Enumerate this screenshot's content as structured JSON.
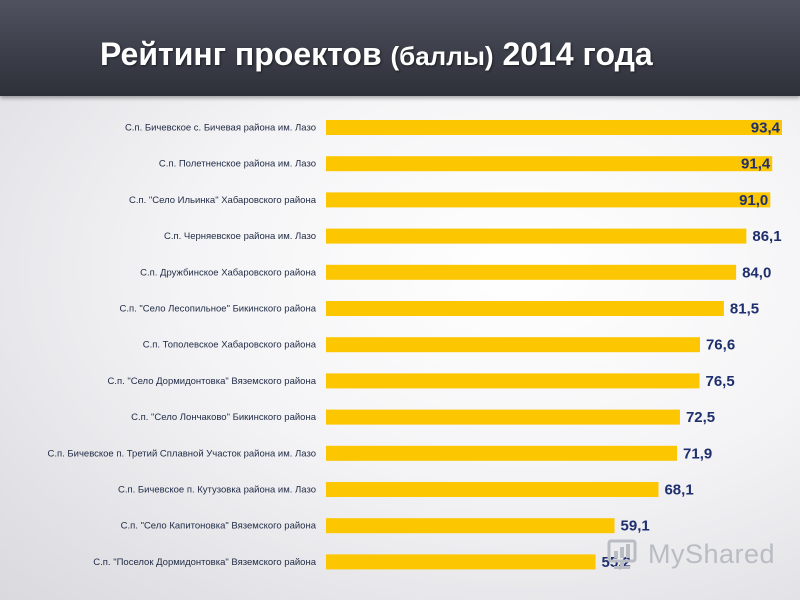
{
  "header": {
    "title_main": "Рейтинг проектов",
    "title_paren": "(баллы)",
    "title_year": "2014 года"
  },
  "chart_data": {
    "type": "bar",
    "orientation": "horizontal",
    "categories": [
      "С.п. Бичевское с. Бичевая района им. Лазо",
      "С.п. Полетненское района им. Лазо",
      "С.п. \"Село Ильинка\" Хабаровского района",
      "С.п. Черняевское района им. Лазо",
      "С.п.  Дружбинское Хабаровского района",
      "С.п. \"Село Лесопильное\" Бикинского района",
      "С.п. Тополевское Хабаровского района",
      "С.п. \"Село Дормидонтовка\" Вяземского района",
      "С.п. \"Село Лончаково\"  Бикинского района",
      "С.п. Бичевское п. Третий Сплавной Участок района им. Лазо",
      "С.п. Бичевское п. Кутузовка района им. Лазо",
      "С.п. \"Село Капитоновка\" Вяземского района",
      "С.п. \"Поселок Дормидонтовка\" Вяземского района"
    ],
    "values": [
      93.4,
      91.4,
      91.0,
      86.1,
      84.0,
      81.5,
      76.6,
      76.5,
      72.5,
      71.9,
      68.1,
      59.1,
      55.2
    ],
    "value_labels": [
      "93,4",
      "91,4",
      "91,0",
      "86,1",
      "84,0",
      "81,5",
      "76,6",
      "76,5",
      "72,5",
      "71,9",
      "68,1",
      "59,1",
      "55,2"
    ],
    "xlim": [
      0,
      93.4
    ],
    "grid": false,
    "legend": "none",
    "bar_color": "#fcc600",
    "value_label_color": "#1f2f6e"
  },
  "watermark": {
    "text": "MyShared",
    "icon": "myshared-logo-icon"
  }
}
